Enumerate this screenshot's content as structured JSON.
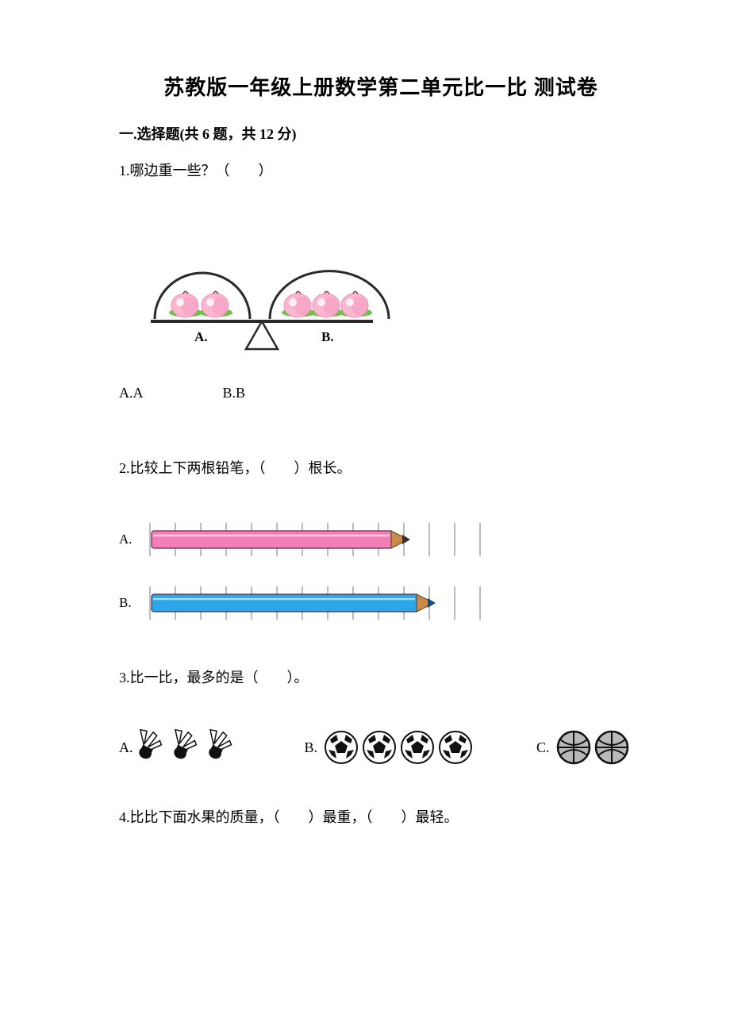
{
  "title": "苏教版一年级上册数学第二单元比一比 测试卷",
  "section1": {
    "heading": "一.选择题(共 6 题，共 12 分)",
    "q1": {
      "text": "1.哪边重一些？（　　）",
      "balance": {
        "left_peaches": 2,
        "right_peaches": 3,
        "label_left": "A.",
        "label_right": "B.",
        "peach_body": "#fbb7d0",
        "peach_shade": "#f48db5",
        "leaf_color": "#6fc24a",
        "beam_color": "#2a2a2a",
        "pan_line": "#2a2a2a",
        "fulcrum_stroke": "#2a2a2a"
      },
      "opts": {
        "a": "A.A",
        "b": "B.B"
      }
    },
    "q2": {
      "text": "2.比较上下两根铅笔，（　　）根长。",
      "pencilA": {
        "label": "A.",
        "body_color": "#f47fb8",
        "body_len_units": 10,
        "ruler_units": 13,
        "tip_color": "#c98a4a",
        "tip_dark": "#333333",
        "ruler_stroke": "#777777"
      },
      "pencilB": {
        "label": "B.",
        "body_color": "#2aa7e8",
        "body_len_units": 11,
        "ruler_units": 13,
        "tip_color": "#c98a4a",
        "tip_dark": "#164a8a",
        "ruler_stroke": "#777777"
      }
    },
    "q3": {
      "text": "3.比一比，最多的是（　　）。",
      "opts": {
        "a_label": "A.",
        "a_count": 3,
        "a_type": "shuttlecock",
        "b_label": "B.",
        "b_count": 4,
        "b_type": "soccer",
        "c_label": "C.",
        "c_count": 2,
        "c_type": "basketball"
      },
      "colors": {
        "shuttle_feather": "#ffffff",
        "shuttle_stroke": "#111111",
        "shuttle_base": "#111111",
        "soccer_white": "#ffffff",
        "soccer_black": "#111111",
        "basketball_fill": "#b9b9b9",
        "basketball_stroke": "#111111"
      }
    },
    "q4": {
      "text": "4.比比下面水果的质量，（　　）最重，（　　）最轻。"
    }
  }
}
